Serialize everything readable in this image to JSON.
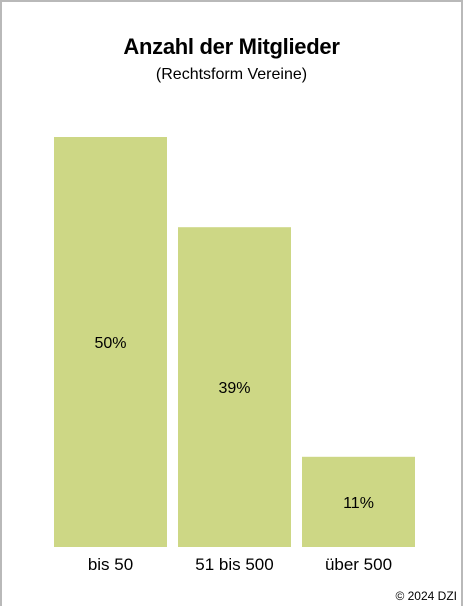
{
  "chart_data": {
    "type": "bar",
    "title": "Anzahl der Mitglieder",
    "subtitle": "(Rechtsform Vereine)",
    "categories": [
      "bis 50",
      "51 bis 500",
      "über 500"
    ],
    "values": [
      50,
      39,
      11
    ],
    "value_labels": [
      "50%",
      "39%",
      "11%"
    ],
    "ylim": [
      0,
      50
    ],
    "bar_color": "#cdd785",
    "grid": false,
    "legend": "none"
  },
  "footer": {
    "copyright": "© 2024 DZI"
  }
}
